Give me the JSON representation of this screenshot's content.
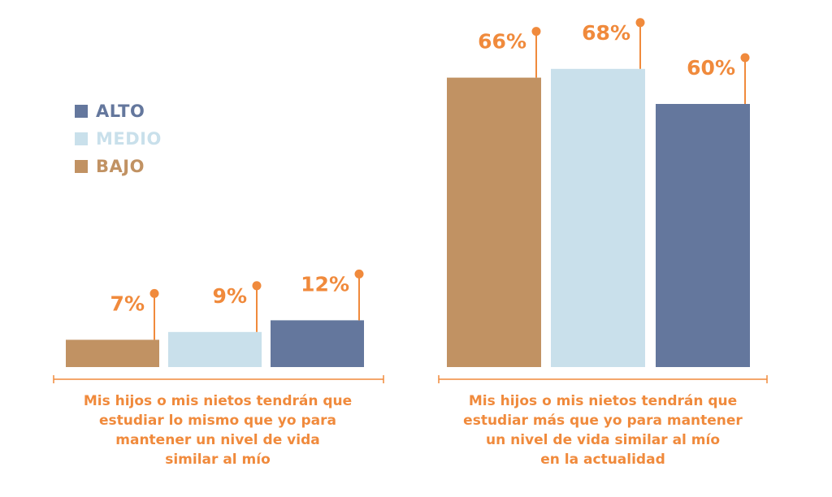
{
  "colors": {
    "bajo": "#c19263",
    "medio": "#c9e0eb",
    "alto": "#64779d",
    "accent": "#f08a3c"
  },
  "legend": [
    {
      "label": "ALTO",
      "color": "#64779d"
    },
    {
      "label": "MEDIO",
      "color": "#c9e0eb"
    },
    {
      "label": "BAJO",
      "color": "#c19263"
    }
  ],
  "chart_data": {
    "type": "bar",
    "unit": "%",
    "series": [
      {
        "name": "BAJO",
        "color": "#c19263",
        "values": [
          7,
          66
        ]
      },
      {
        "name": "MEDIO",
        "color": "#c9e0eb",
        "values": [
          9,
          68
        ]
      },
      {
        "name": "ALTO",
        "color": "#64779d",
        "values": [
          12,
          60
        ]
      }
    ],
    "value_labels": [
      [
        "7%",
        "66%"
      ],
      [
        "9%",
        "68%"
      ],
      [
        "12%",
        "60%"
      ]
    ],
    "categories": [
      {
        "lines": [
          "Mis hijos o mis nietos tendrán que",
          "estudiar lo mismo que yo para",
          "mantener un nivel de vida",
          "similar al mío"
        ]
      },
      {
        "lines": [
          "Mis hijos o mis nietos tendrán que",
          "estudiar más que yo para mantener",
          "un nivel de vida similar al mío",
          "en la actualidad"
        ]
      }
    ],
    "ylim": [
      0,
      100
    ],
    "grid": false,
    "legend_position": "left"
  }
}
